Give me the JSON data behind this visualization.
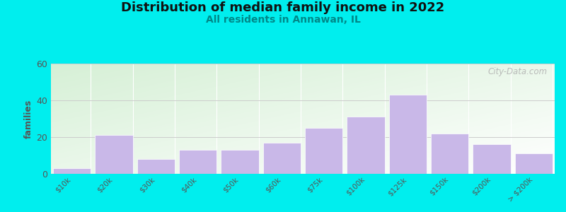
{
  "title": "Distribution of median family income in 2022",
  "subtitle": "All residents in Annawan, IL",
  "title_fontsize": 13,
  "subtitle_fontsize": 10,
  "ylabel": "families",
  "categories": [
    "$10k",
    "$20k",
    "$30k",
    "$40k",
    "$50k",
    "$60k",
    "$75k",
    "$100k",
    "$125k",
    "$150k",
    "$200k",
    "> $200k"
  ],
  "values": [
    3,
    21,
    8,
    13,
    13,
    17,
    25,
    31,
    43,
    22,
    16,
    11
  ],
  "bar_color": "#c9b8e8",
  "bar_edgecolor": "#ffffff",
  "ylim": [
    0,
    60
  ],
  "yticks": [
    0,
    20,
    40,
    60
  ],
  "background_color": "#00eeee",
  "watermark_text": "City-Data.com",
  "title_color": "#111111",
  "subtitle_color": "#008888",
  "ylabel_color": "#555555",
  "tick_color": "#555555",
  "grid_color": "#cccccc",
  "fig_width": 8.0,
  "fig_height": 3.0
}
